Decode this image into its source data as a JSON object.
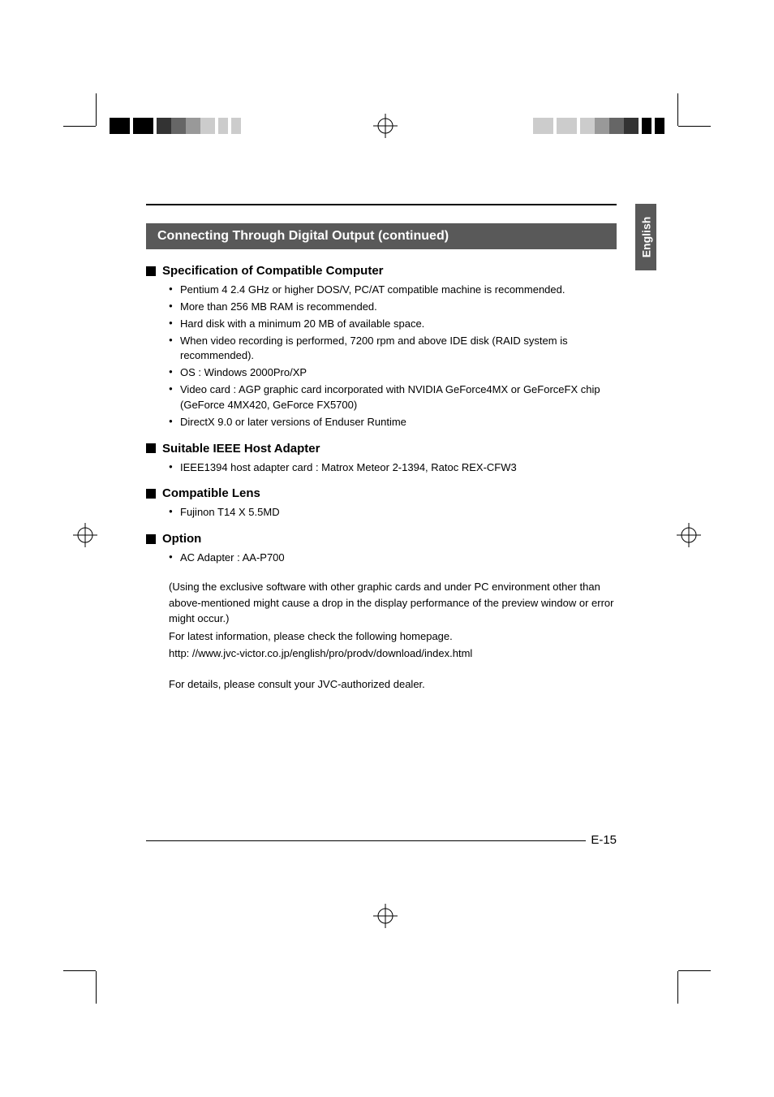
{
  "crop_color": "#000000",
  "title": "Connecting Through Digital Output (continued)",
  "side_tab": "English",
  "page_number": "E-15",
  "sections": [
    {
      "heading": "Specification of Compatible Computer",
      "items": [
        "Pentium 4 2.4 GHz or higher DOS/V, PC/AT compatible machine is recommended.",
        "More than 256 MB RAM is recommended.",
        "Hard disk with a minimum 20 MB of available space.",
        "When video recording is performed, 7200 rpm and above IDE disk (RAID system is recommended).",
        "OS : Windows 2000Pro/XP",
        "Video card : AGP graphic card incorporated with NVIDIA GeForce4MX or GeForceFX chip (GeForce 4MX420, GeForce FX5700)",
        "DirectX 9.0 or later versions of Enduser Runtime"
      ]
    },
    {
      "heading": "Suitable IEEE Host Adapter",
      "items": [
        "IEEE1394 host adapter card : Matrox Meteor 2-1394, Ratoc REX-CFW3"
      ]
    },
    {
      "heading": "Compatible Lens",
      "items": [
        "Fujinon T14 X 5.5MD"
      ]
    },
    {
      "heading": "Option",
      "items": [
        "AC Adapter : AA-P700"
      ]
    }
  ],
  "notes": [
    "(Using the exclusive software with other graphic cards and under PC environment other than above-mentioned might cause a drop in the display performance of the preview window or error might occur.)",
    "For latest information, please check the following homepage.",
    "http: //www.jvc-victor.co.jp/english/pro/prodv/download/index.html",
    "",
    "For details, please consult your JVC-authorized dealer."
  ],
  "reg_colors_left": [
    "#000000",
    "#ffffff",
    "#000000",
    "#ffffff",
    "#333333",
    "#666666",
    "#999999",
    "#cccccc",
    "#ffffff",
    "#cccccc",
    "#ffffff",
    "#cccccc"
  ],
  "reg_colors_right": [
    "#cccccc",
    "#ffffff",
    "#cccccc",
    "#ffffff",
    "#cccccc",
    "#999999",
    "#666666",
    "#333333",
    "#ffffff",
    "#000000",
    "#ffffff",
    "#000000"
  ],
  "reg_widths": [
    25,
    4,
    25,
    4,
    18,
    18,
    18,
    18,
    4,
    12,
    4,
    12
  ]
}
